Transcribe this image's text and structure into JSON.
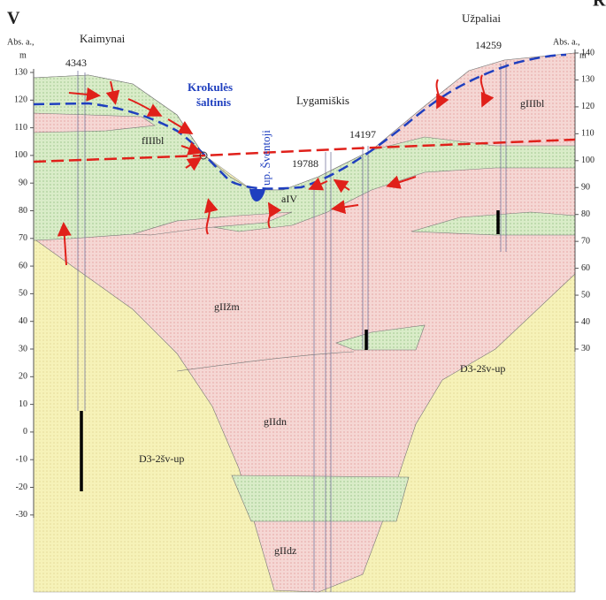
{
  "header": {
    "left_end": "V",
    "right_end": "R"
  },
  "left_axis": {
    "title_line1": "Abs. a.,",
    "title_line2": "m",
    "ticks": [
      130,
      120,
      110,
      100,
      90,
      80,
      70,
      60,
      50,
      40,
      30,
      20,
      10,
      0,
      -10,
      -20,
      -30
    ]
  },
  "right_axis": {
    "title_line1": "Abs. a.,",
    "title_line2": "m",
    "ticks": [
      140,
      130,
      120,
      110,
      100,
      90,
      80,
      70,
      60,
      50,
      40,
      30
    ]
  },
  "places": {
    "left": "Kaimynai",
    "right": "Užpaliai",
    "middle": "Lygamiškis"
  },
  "spring": {
    "line1": "Krokulės",
    "line2": "šaltinis"
  },
  "river": "up. Šventoji",
  "wells": {
    "w1": "4343",
    "w2": "14259",
    "w3": "14197",
    "w4": "19788"
  },
  "layers": {
    "fIIIbl": "fIIIbl",
    "gIIIbl": "gIIIbl",
    "aIV": "aIV",
    "gIIzm": "gIIžm",
    "gIIdn": "gIIdn",
    "gIIdz": "gIIdz",
    "d3_left": "D3-2šv-up",
    "d3_right": "D3-2šv-up"
  }
}
